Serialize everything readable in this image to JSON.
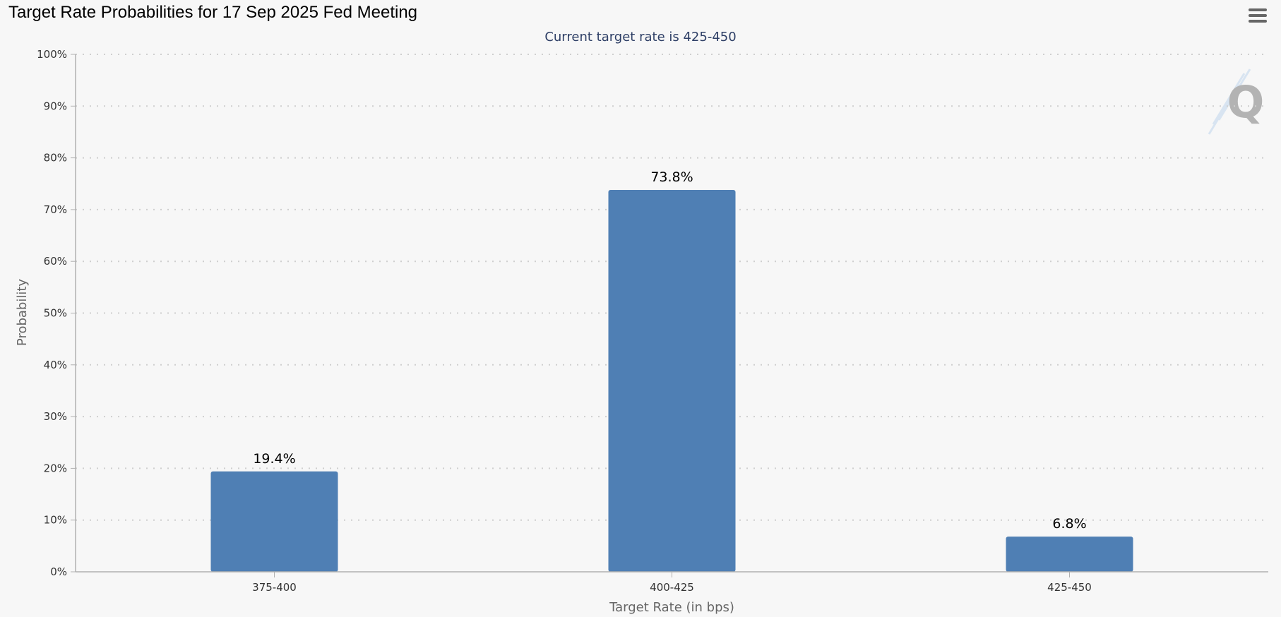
{
  "header": {
    "title": "Target Rate Probabilities for 17 Sep 2025 Fed Meeting",
    "menu_icon": "hamburger-menu-icon"
  },
  "chart_data": {
    "type": "bar",
    "title": "Target Rate Probabilities for 17 Sep 2025 Fed Meeting",
    "subtitle": "Current target rate is 425-450",
    "categories": [
      "375-400",
      "400-425",
      "425-450"
    ],
    "values": [
      19.4,
      73.8,
      6.8
    ],
    "data_labels": [
      "19.4%",
      "73.8%",
      "6.8%"
    ],
    "xlabel": "Target Rate (in bps)",
    "ylabel": "Probability",
    "ylim": [
      0,
      100
    ],
    "yticks": [
      "0%",
      "10%",
      "20%",
      "30%",
      "40%",
      "50%",
      "60%",
      "70%",
      "80%",
      "90%",
      "100%"
    ],
    "grid": true,
    "bar_color": "#4f7fb4"
  },
  "watermark": {
    "icon": "q-logo-watermark-icon",
    "letter": "Q"
  }
}
